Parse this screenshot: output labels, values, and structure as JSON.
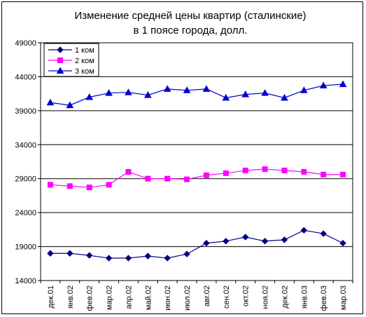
{
  "chart_data": {
    "type": "line",
    "title_lines": [
      "Изменение средней цены квартир (сталинские)",
      "в 1 поясе города, долл."
    ],
    "categories": [
      "дек.01",
      "янв.02",
      "фев.02",
      "мар.02",
      "апр.02",
      "май.02",
      "июн.02",
      "июл.02",
      "авг.02",
      "сен.02",
      "окт.02",
      "ноя.02",
      "дек.02",
      "янв.03",
      "фев.03",
      "мар.03"
    ],
    "ylim": [
      14000,
      49000
    ],
    "yticks": [
      14000,
      19000,
      24000,
      29000,
      34000,
      39000,
      44000,
      49000
    ],
    "ytick_labels": [
      "14000",
      "19000",
      "24000",
      "29000",
      "34000",
      "39000",
      "44000",
      "49000"
    ],
    "grid": true,
    "legend_position": "top-left",
    "series": [
      {
        "name": "1 ком",
        "color": "#000080",
        "marker": "diamond",
        "values": [
          18000,
          18000,
          17700,
          17300,
          17300,
          17600,
          17300,
          17900,
          19500,
          19800,
          20400,
          19800,
          20000,
          21400,
          20900,
          19500
        ]
      },
      {
        "name": "2 ком",
        "color": "#ff00ff",
        "marker": "square",
        "values": [
          28100,
          27900,
          27700,
          28100,
          30000,
          29000,
          29000,
          28900,
          29500,
          29800,
          30200,
          30400,
          30200,
          30000,
          29600,
          29600
        ]
      },
      {
        "name": "3 ком",
        "color": "#0000cc",
        "marker": "triangle",
        "values": [
          40200,
          39800,
          41000,
          41600,
          41700,
          41300,
          42200,
          42000,
          42200,
          40900,
          41400,
          41600,
          40900,
          42000,
          42700,
          42900
        ]
      }
    ]
  }
}
